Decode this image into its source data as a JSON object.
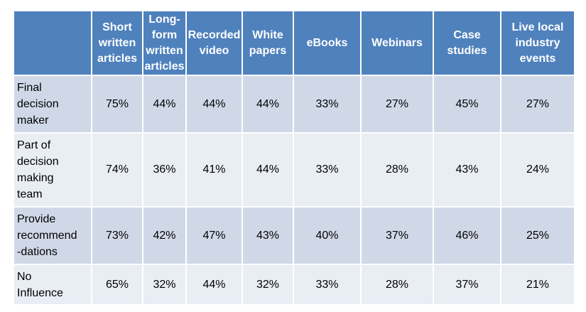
{
  "chart_data": {
    "type": "table",
    "columns": [
      "Short written articles",
      "Long-form written articles",
      "Recorded video",
      "White papers",
      "eBooks",
      "Webinars",
      "Case studies",
      "Live local industry events"
    ],
    "column_lines": [
      [
        "Short",
        "written",
        "articles"
      ],
      [
        "Long-",
        "form",
        "written",
        "articles"
      ],
      [
        "Recorded",
        "video"
      ],
      [
        "White",
        "papers"
      ],
      [
        "eBooks"
      ],
      [
        "Webinars"
      ],
      [
        "Case",
        "studies"
      ],
      [
        "Live local",
        "industry",
        "events"
      ]
    ],
    "rows": [
      {
        "label": "Final decision maker",
        "label_lines": [
          "Final",
          "decision",
          "maker"
        ],
        "values": [
          "75%",
          "44%",
          "44%",
          "44%",
          "33%",
          "27%",
          "45%",
          "27%"
        ]
      },
      {
        "label": "Part of decision making team",
        "label_lines": [
          "Part of",
          "decision",
          "making",
          "team"
        ],
        "values": [
          "74%",
          "36%",
          "41%",
          "44%",
          "33%",
          "28%",
          "43%",
          "24%"
        ]
      },
      {
        "label": "Provide recommend-dations",
        "label_lines": [
          "Provide",
          "recommend",
          "-dations"
        ],
        "values": [
          "73%",
          "42%",
          "47%",
          "43%",
          "40%",
          "37%",
          "46%",
          "25%"
        ]
      },
      {
        "label": "No Influence",
        "label_lines": [
          "No",
          "Influence"
        ],
        "values": [
          "65%",
          "32%",
          "44%",
          "32%",
          "33%",
          "28%",
          "37%",
          "21%"
        ]
      }
    ],
    "colors": {
      "header": "#4f81bd",
      "row_odd": "#d0d8e8",
      "row_even": "#e9edf4",
      "header_text": "#ffffff"
    }
  }
}
